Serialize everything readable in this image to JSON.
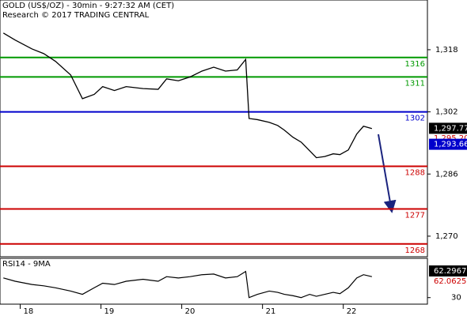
{
  "chart_data": {
    "type": "line",
    "title": "GOLD (US$/OZ) - 30min - 9:27:32 AM (CET)",
    "subtitle": "Research © 2017 TRADING CENTRAL",
    "xlim": [
      0,
      254
    ],
    "xticks": [
      {
        "value": 12,
        "label": "18"
      },
      {
        "value": 60,
        "label": "19"
      },
      {
        "value": 108,
        "label": "20"
      },
      {
        "value": 156,
        "label": "21"
      },
      {
        "value": 204,
        "label": "22"
      }
    ],
    "ylim": [
      1264.7,
      1330.8
    ],
    "yticks": [
      {
        "value": 1318,
        "label": "1,318"
      },
      {
        "value": 1302,
        "label": "1,302"
      },
      {
        "value": 1286,
        "label": "1,286"
      },
      {
        "value": 1270,
        "label": "1,270"
      }
    ],
    "x": [
      2,
      9,
      19,
      26,
      33,
      42,
      49,
      56,
      61,
      68,
      75,
      85,
      94,
      99,
      106,
      113,
      120,
      127,
      134,
      141,
      146,
      148,
      153,
      160,
      165,
      169,
      174,
      179,
      184,
      188,
      193,
      198,
      202,
      207,
      212,
      216,
      221
    ],
    "series": [
      {
        "color": "#000000",
        "values": [
          1322.3,
          1320.5,
          1318.2,
          1317,
          1315,
          1311.5,
          1305.4,
          1306.5,
          1308.5,
          1307.5,
          1308.5,
          1308,
          1307.8,
          1310.5,
          1310,
          1311,
          1312.5,
          1313.5,
          1312.5,
          1312.8,
          1315.5,
          1300.3,
          1300,
          1299.3,
          1298.5,
          1297.3,
          1295.5,
          1294.2,
          1292,
          1290.2,
          1290.5,
          1291.2,
          1291,
          1292.2,
          1296.3,
          1298.3,
          1297.7
        ]
      }
    ],
    "levels": [
      {
        "value": 1316,
        "label": "1316",
        "color": "#009900"
      },
      {
        "value": 1311,
        "label": "1311",
        "color": "#009900"
      },
      {
        "value": 1302,
        "label": "1302",
        "color": "#0000cc"
      },
      {
        "value": 1288,
        "label": "1288",
        "color": "#cc0000"
      },
      {
        "value": 1277,
        "label": "1277",
        "color": "#cc0000"
      },
      {
        "value": 1268,
        "label": "1268",
        "color": "#cc0000"
      }
    ],
    "price_tags": [
      {
        "value": 1297.77,
        "label": "1,297.77",
        "color": "#000000",
        "box": true
      },
      {
        "value": 1295.2,
        "label": "1,295.20",
        "color": "#cc0000",
        "box": false
      },
      {
        "value": 1293.66,
        "label": "1,293.66",
        "color": "#0000cc",
        "box": true
      }
    ],
    "rsi": {
      "label": "RSI14 - 9MA",
      "ylim": [
        20,
        90
      ],
      "yticks": [
        30
      ],
      "color": "#000000",
      "values": [
        60,
        55,
        50,
        48,
        45,
        40,
        35,
        45,
        52,
        50,
        55,
        58,
        55,
        62,
        60,
        62,
        65,
        66,
        60,
        62,
        70,
        30,
        35,
        40,
        38,
        35,
        33,
        30,
        35,
        32,
        35,
        38,
        36,
        45,
        60,
        65,
        62
      ],
      "tags": [
        {
          "value": 62.2967,
          "label": "62.2967",
          "color": "#000000",
          "box": true
        },
        {
          "value": 62.0625,
          "label": "62.0625",
          "color": "#cc0000",
          "box": false
        }
      ]
    }
  }
}
